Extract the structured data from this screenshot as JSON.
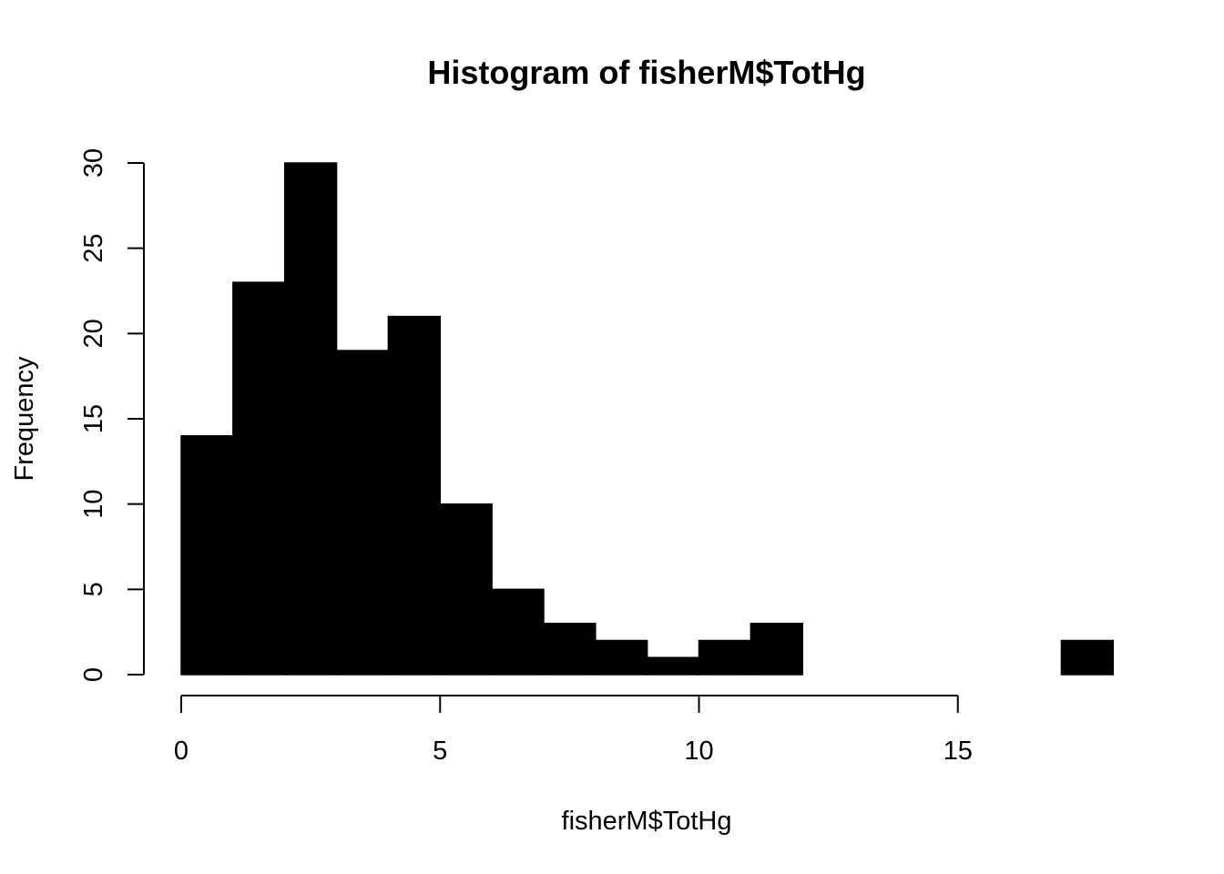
{
  "chart_data": {
    "type": "bar",
    "title": "Histogram of fisherM$TotHg",
    "xlabel": "fisherM$TotHg",
    "ylabel": "Frequency",
    "bin_edges": [
      0,
      1,
      2,
      3,
      4,
      5,
      6,
      7,
      8,
      9,
      10,
      11,
      12,
      13,
      14,
      15,
      16,
      17,
      18
    ],
    "values": [
      14,
      23,
      30,
      19,
      21,
      10,
      5,
      3,
      2,
      1,
      2,
      3,
      0,
      0,
      0,
      0,
      0,
      2
    ],
    "x_ticks": [
      "0",
      "5",
      "10",
      "15"
    ],
    "y_ticks": [
      "0",
      "5",
      "10",
      "15",
      "20",
      "25",
      "30"
    ],
    "xlim": [
      0,
      18
    ],
    "ylim": [
      0,
      30
    ],
    "grid": false,
    "bar_color": "#000000"
  }
}
